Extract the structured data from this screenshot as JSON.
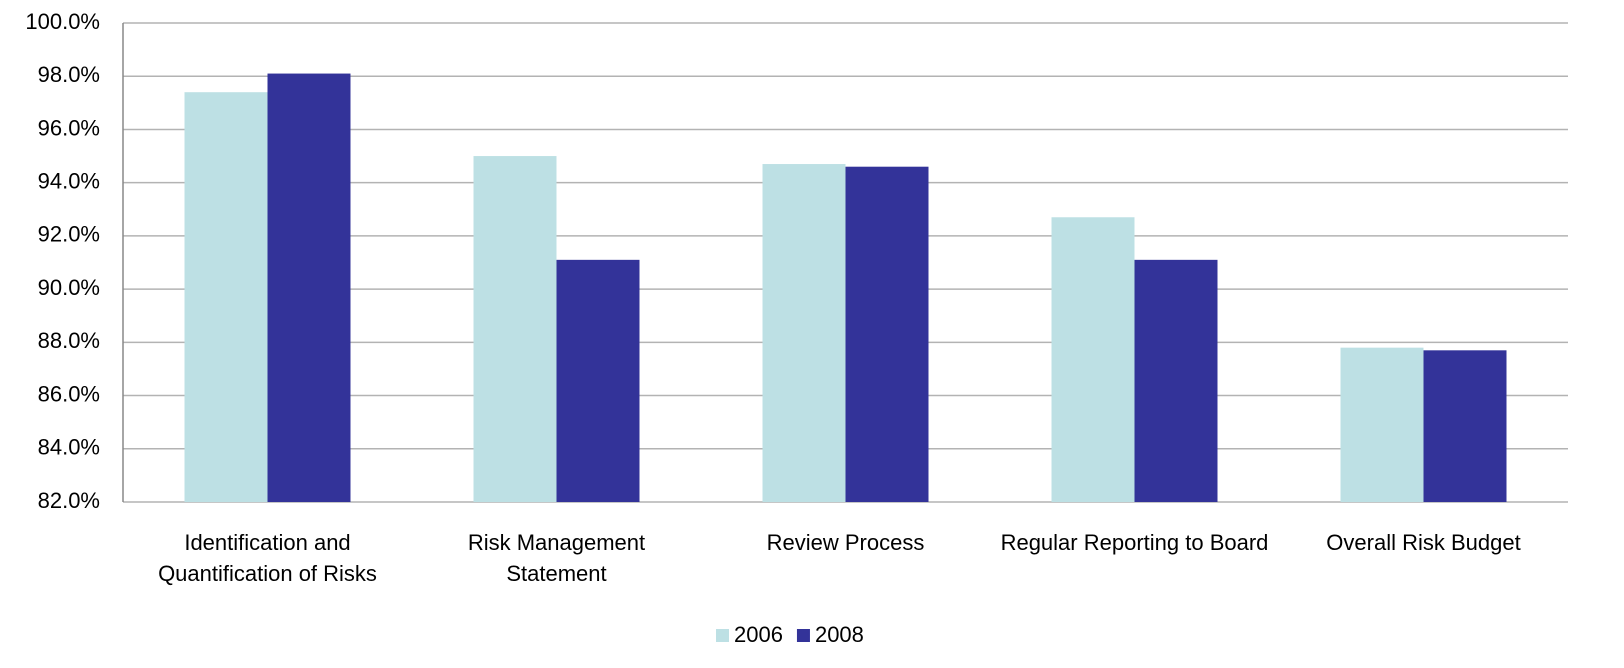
{
  "chart_data": {
    "type": "bar",
    "categories": [
      "Identification and Quantification of Risks",
      "Risk Management Statement",
      "Review Process",
      "Regular Reporting to Board",
      "Overall Risk Budget"
    ],
    "series": [
      {
        "name": "2006",
        "color": "#bde0e4",
        "values": [
          97.4,
          95.0,
          94.7,
          92.7,
          87.8
        ]
      },
      {
        "name": "2008",
        "color": "#333399",
        "values": [
          98.1,
          91.1,
          94.6,
          91.1,
          87.7
        ]
      }
    ],
    "ylim": [
      82,
      100
    ],
    "yticks": [
      {
        "value": 82,
        "label": "82.0%"
      },
      {
        "value": 84,
        "label": "84.0%"
      },
      {
        "value": 86,
        "label": "86.0%"
      },
      {
        "value": 88,
        "label": "88.0%"
      },
      {
        "value": 90,
        "label": "90.0%"
      },
      {
        "value": 92,
        "label": "92.0%"
      },
      {
        "value": 94,
        "label": "94.0%"
      },
      {
        "value": 96,
        "label": "96.0%"
      },
      {
        "value": 98,
        "label": "98.0%"
      },
      {
        "value": 100,
        "label": "100.0%"
      }
    ],
    "grid": true,
    "legend": "bottom"
  }
}
